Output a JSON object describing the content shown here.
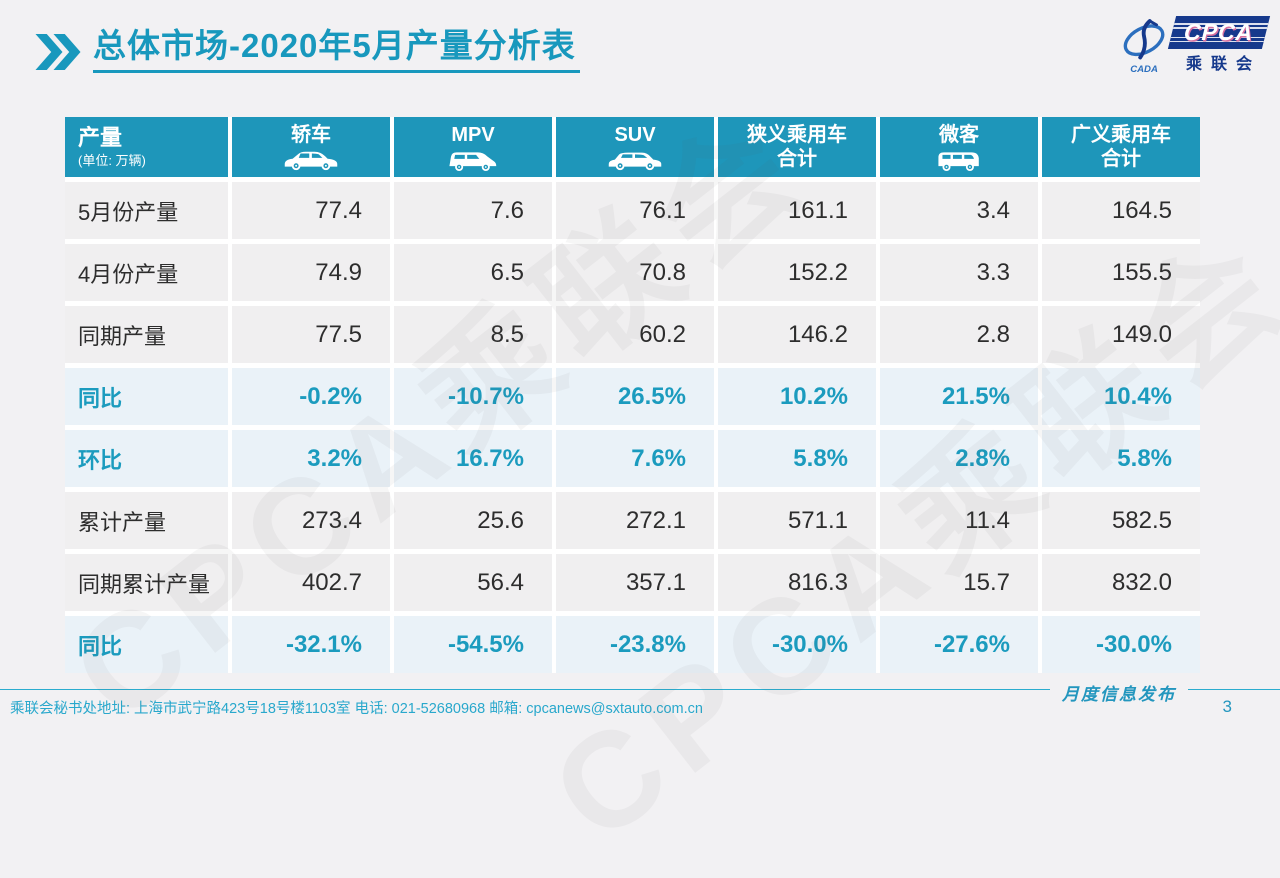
{
  "title": {
    "highlight": "总体市场",
    "rest": "-2020年5月产量分析表"
  },
  "logo": {
    "cpca": "CPCA",
    "org": "乘联会",
    "cada": "CADA"
  },
  "watermark": "CPCA乘联会",
  "table": {
    "corner": {
      "title": "产量",
      "unit": "(单位: 万辆)"
    },
    "columns": [
      {
        "label": "轿车",
        "icon": "sedan-icon"
      },
      {
        "label": "MPV",
        "icon": "mpv-icon"
      },
      {
        "label": "SUV",
        "icon": "suv-icon"
      },
      {
        "label": "狭义乘用车",
        "label2": "合计"
      },
      {
        "label": "微客",
        "icon": "microvan-icon"
      },
      {
        "label": "广义乘用车",
        "label2": "合计"
      }
    ],
    "rows": [
      {
        "label": "5月份产量",
        "type": "data",
        "values": [
          "77.4",
          "7.6",
          "76.1",
          "161.1",
          "3.4",
          "164.5"
        ]
      },
      {
        "label": "4月份产量",
        "type": "data",
        "values": [
          "74.9",
          "6.5",
          "70.8",
          "152.2",
          "3.3",
          "155.5"
        ]
      },
      {
        "label": "同期产量",
        "type": "data",
        "values": [
          "77.5",
          "8.5",
          "60.2",
          "146.2",
          "2.8",
          "149.0"
        ]
      },
      {
        "label": "同比",
        "type": "ratio",
        "values": [
          "-0.2%",
          "-10.7%",
          "26.5%",
          "10.2%",
          "21.5%",
          "10.4%"
        ]
      },
      {
        "label": "环比",
        "type": "ratio",
        "values": [
          "3.2%",
          "16.7%",
          "7.6%",
          "5.8%",
          "2.8%",
          "5.8%"
        ]
      },
      {
        "label": "累计产量",
        "type": "data",
        "values": [
          "273.4",
          "25.6",
          "272.1",
          "571.1",
          "11.4",
          "582.5"
        ]
      },
      {
        "label": "同期累计产量",
        "type": "data",
        "values": [
          "402.7",
          "56.4",
          "357.1",
          "816.3",
          "15.7",
          "832.0"
        ]
      },
      {
        "label": "同比",
        "type": "ratio",
        "values": [
          "-32.1%",
          "-54.5%",
          "-23.8%",
          "-30.0%",
          "-27.6%",
          "-30.0%"
        ]
      }
    ]
  },
  "chart_data": {
    "type": "table",
    "title": "总体市场-2020年5月产量分析表",
    "unit": "万辆",
    "categories": [
      "轿车",
      "MPV",
      "SUV",
      "狭义乘用车合计",
      "微客",
      "广义乘用车合计"
    ],
    "series": [
      {
        "name": "5月份产量",
        "values": [
          77.4,
          7.6,
          76.1,
          161.1,
          3.4,
          164.5
        ]
      },
      {
        "name": "4月份产量",
        "values": [
          74.9,
          6.5,
          70.8,
          152.2,
          3.3,
          155.5
        ]
      },
      {
        "name": "同期产量",
        "values": [
          77.5,
          8.5,
          60.2,
          146.2,
          2.8,
          149.0
        ]
      },
      {
        "name": "同比",
        "values": [
          "-0.2%",
          "-10.7%",
          "26.5%",
          "10.2%",
          "21.5%",
          "10.4%"
        ]
      },
      {
        "name": "环比",
        "values": [
          "3.2%",
          "16.7%",
          "7.6%",
          "5.8%",
          "2.8%",
          "5.8%"
        ]
      },
      {
        "name": "累计产量",
        "values": [
          273.4,
          25.6,
          272.1,
          571.1,
          11.4,
          582.5
        ]
      },
      {
        "name": "同期累计产量",
        "values": [
          402.7,
          56.4,
          357.1,
          816.3,
          15.7,
          832.0
        ]
      },
      {
        "name": "同比(累计)",
        "values": [
          "-32.1%",
          "-54.5%",
          "-23.8%",
          "-30.0%",
          "-27.6%",
          "-30.0%"
        ]
      }
    ]
  },
  "footer": {
    "address": "乘联会秘书处地址: 上海市武宁路423号18号楼1103室  电话: 021-52680968   邮箱: cpcanews@sxtauto.com.cn",
    "publication": "月度信息发布",
    "page": "3"
  },
  "colors": {
    "accent": "#1898BD",
    "header_bg": "#1E96BA",
    "row_bg": "#F0EFF0",
    "highlight_row_bg": "#EAF2F8",
    "highlight_text": "#1B9BBE",
    "page_bg": "#F2F1F3",
    "footer_text": "#29A8CC",
    "logo_navy": "#16398C",
    "logo_blue": "#2C6FBE"
  }
}
